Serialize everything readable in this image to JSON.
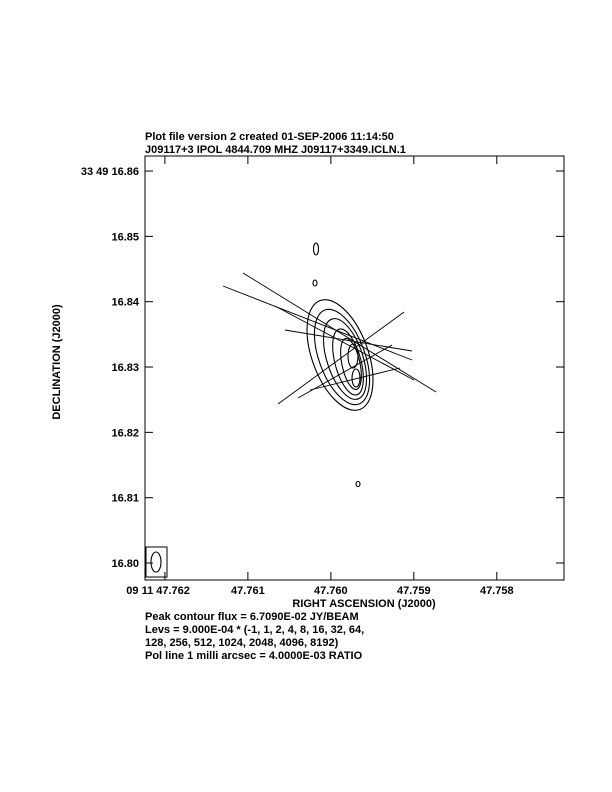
{
  "chart_data": {
    "type": "contour",
    "title": "Plot file version 2  created 01-SEP-2006 11:14:50",
    "subtitle": "J09117+3  IPOL  4844.709 MHZ  J09117+3349.ICLN.1",
    "x_label": "RIGHT ASCENSION (J2000)",
    "y_label": "DECLINATION (J2000)",
    "xlim": [
      47.76224,
      47.75719
    ],
    "ylim": [
      16.7974,
      16.8623
    ],
    "xticks": [
      {
        "value": 47.762,
        "label": "09 11 47.762"
      },
      47.761,
      {
        "value": 47.76,
        "label": "47.760"
      },
      47.759,
      47.758
    ],
    "yticks": [
      {
        "value": 16.86,
        "label": "33 49 16.86"
      },
      16.85,
      16.84,
      16.83,
      16.82,
      16.81,
      {
        "value": 16.8,
        "label": "16.80"
      }
    ],
    "annotations": [
      "Peak contour flux =  6.7090E-02 JY/BEAM",
      "Levs = 9.000E-04 * (-1, 1, 2, 4, 8, 16, 32, 64,",
      "128, 256, 512, 1024, 2048, 4096, 8192)",
      "Pol line 1 milli arcsec =  4.0000E-03 RATIO"
    ]
  }
}
